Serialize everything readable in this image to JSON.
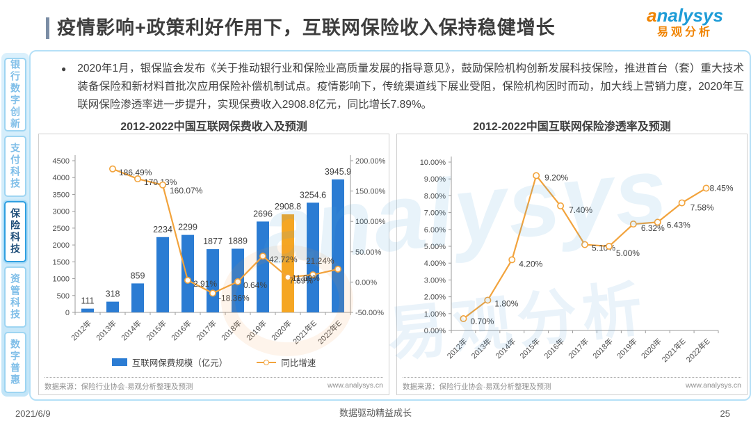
{
  "header": {
    "title": "疫情影响+政策利好作用下，互联网保险收入保持稳健增长",
    "logo": {
      "brand": "analysys",
      "brand_cn": "易观分析"
    }
  },
  "sidebar": {
    "items": [
      {
        "label": "银行数字创新",
        "active": false
      },
      {
        "label": "支付科技",
        "active": false
      },
      {
        "label": "保险科技",
        "active": true
      },
      {
        "label": "资管科技",
        "active": false
      },
      {
        "label": "数字普惠",
        "active": false
      }
    ]
  },
  "bullet": {
    "text": "2020年1月，银保监会发布《关于推动银行业和保险业高质量发展的指导意见》，鼓励保险机构创新发展科技保险，推进首台（套）重大技术装备保险和新材料首批次应用保险补偿机制试点。疫情影响下，传统渠道线下展业受阻，保险机构因时而动，加大线上营销力度，2020年互联网保险渗透率进一步提升，实现保费收入2908.8亿元，同比增长7.89%。"
  },
  "colors": {
    "bar_blue": "#2b7cd3",
    "bar_highlight_orange": "#f5a623",
    "line_orange": "#f2a33c",
    "brand_blue": "#1e9cd7",
    "brand_orange": "#f08300"
  },
  "chart_data": [
    {
      "type": "bar",
      "title": "2012-2022中国互联网保费收入及预测",
      "categories": [
        "2012年",
        "2013年",
        "2014年",
        "2015年",
        "2016年",
        "2017年",
        "2018年",
        "2019年",
        "2020年",
        "2021年E",
        "2022年E"
      ],
      "series": [
        {
          "name": "互联网保费规模（亿元）",
          "type": "bar",
          "values": [
            111,
            318,
            859,
            2234,
            2299,
            1877,
            1889,
            2696,
            2908.8,
            3254.6,
            3945.9
          ],
          "labels": [
            "111",
            "318",
            "859",
            "2234",
            "2299",
            "1877",
            "1889",
            "2696",
            "2908.8",
            "3254.6",
            "3945.9"
          ],
          "color": "#2b7cd3",
          "highlight_index": 8,
          "highlight_color": "#f5a623"
        },
        {
          "name": "同比增速",
          "type": "line",
          "values": [
            null,
            186.49,
            170.13,
            160.07,
            2.91,
            -18.36,
            0.64,
            42.72,
            7.89,
            11.89,
            21.24
          ],
          "labels": [
            null,
            "186.49%",
            "170.13%",
            "160.07%",
            "2.91%",
            "-18.36%",
            "0.64%",
            "42.72%",
            "7.89%",
            "11.89%",
            "21.24%"
          ],
          "color": "#f2a33c"
        }
      ],
      "y_left": {
        "min": 0,
        "max": 4500,
        "step": 500
      },
      "y_right": {
        "min": -50,
        "max": 200,
        "step": 50,
        "format": "percent2"
      },
      "grid": false,
      "legend_position": "bottom",
      "source": "数据来源：保险行业协会·易观分析整理及预测",
      "site": "www.analysys.cn"
    },
    {
      "type": "line",
      "title": "2012-2022中国互联网保险渗透率及预测",
      "categories": [
        "2012年",
        "2013年",
        "2014年",
        "2015年",
        "2016年",
        "2017年",
        "2018年",
        "2019年",
        "2020年",
        "2021年E",
        "2022年E"
      ],
      "values": [
        0.7,
        1.8,
        4.2,
        9.2,
        7.4,
        5.1,
        5.0,
        6.32,
        6.43,
        7.58,
        8.45
      ],
      "labels": [
        "0.70%",
        "1.80%",
        "4.20%",
        "9.20%",
        "7.40%",
        "5.10%",
        "5.00%",
        "6.32%",
        "6.43%",
        "7.58%",
        "8.45%"
      ],
      "ylim": [
        0,
        10
      ],
      "ystep": 1,
      "yformat": "percent2",
      "grid": false,
      "color": "#f2a33c",
      "source": "数据来源：保险行业协会·易观分析整理及预测",
      "site": "www.analysys.cn"
    }
  ],
  "page_footer": {
    "date": "2021/6/9",
    "slogan": "数据驱动精益成长",
    "page": "25"
  }
}
